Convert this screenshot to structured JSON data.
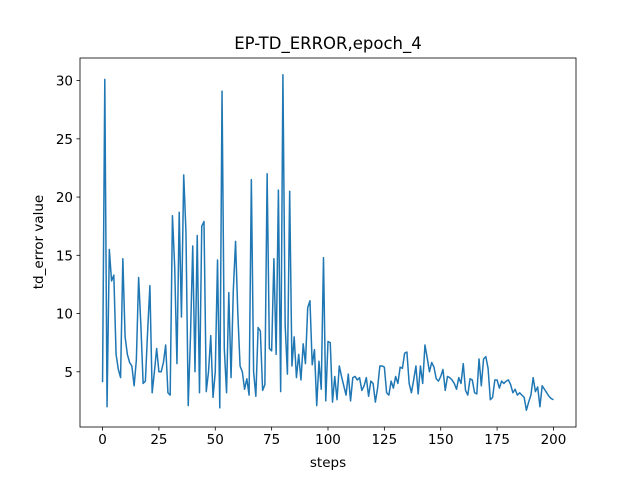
{
  "chart_data": {
    "type": "line",
    "title": "EP-TD_ERROR,epoch_4",
    "xlabel": "steps",
    "ylabel": "td_error value",
    "x": [
      0,
      1,
      2,
      3,
      4,
      5,
      6,
      7,
      8,
      9,
      10,
      11,
      12,
      13,
      14,
      15,
      16,
      17,
      18,
      19,
      20,
      21,
      22,
      23,
      24,
      25,
      26,
      27,
      28,
      29,
      30,
      31,
      32,
      33,
      34,
      35,
      36,
      37,
      38,
      39,
      40,
      41,
      42,
      43,
      44,
      45,
      46,
      47,
      48,
      49,
      50,
      51,
      52,
      53,
      54,
      55,
      56,
      57,
      58,
      59,
      60,
      61,
      62,
      63,
      64,
      65,
      66,
      67,
      68,
      69,
      70,
      71,
      72,
      73,
      74,
      75,
      76,
      77,
      78,
      79,
      80,
      81,
      82,
      83,
      84,
      85,
      86,
      87,
      88,
      89,
      90,
      91,
      92,
      93,
      94,
      95,
      96,
      97,
      98,
      99,
      100,
      101,
      102,
      103,
      104,
      105,
      106,
      107,
      108,
      109,
      110,
      111,
      112,
      113,
      114,
      115,
      116,
      117,
      118,
      119,
      120,
      121,
      122,
      123,
      124,
      125,
      126,
      127,
      128,
      129,
      130,
      131,
      132,
      133,
      134,
      135,
      136,
      137,
      138,
      139,
      140,
      141,
      142,
      143,
      144,
      145,
      146,
      147,
      148,
      149,
      150,
      151,
      152,
      153,
      154,
      155,
      156,
      157,
      158,
      159,
      160,
      161,
      162,
      163,
      164,
      165,
      166,
      167,
      168,
      169,
      170,
      171,
      172,
      173,
      174,
      175,
      176,
      177,
      178,
      179,
      180,
      181,
      182,
      183,
      184,
      185,
      186,
      187,
      188,
      189,
      190,
      191,
      192,
      193,
      194,
      195,
      196,
      197,
      198,
      199,
      200
    ],
    "series": [
      {
        "name": "td_error",
        "color": "#1f77b4",
        "values": [
          4.1,
          30.1,
          2.0,
          15.5,
          12.8,
          13.3,
          6.5,
          5.2,
          4.5,
          14.7,
          8.0,
          6.5,
          5.8,
          5.5,
          3.8,
          6.0,
          13.1,
          9.0,
          4.0,
          4.2,
          8.5,
          12.4,
          3.2,
          5.0,
          7.0,
          5.0,
          5.0,
          5.8,
          7.3,
          3.2,
          3.0,
          18.4,
          14.0,
          5.7,
          18.7,
          9.7,
          21.9,
          17.0,
          2.1,
          8.0,
          15.8,
          5.0,
          16.7,
          3.2,
          17.5,
          17.9,
          3.3,
          5.0,
          8.1,
          2.8,
          5.0,
          14.6,
          1.9,
          29.1,
          7.0,
          3.2,
          11.8,
          4.5,
          12.0,
          16.2,
          10.0,
          5.5,
          5.0,
          3.5,
          4.4,
          3.0,
          21.5,
          5.0,
          2.9,
          8.8,
          8.5,
          3.4,
          3.9,
          22.0,
          7.0,
          6.8,
          14.7,
          6.5,
          20.6,
          3.3,
          30.5,
          9.0,
          4.8,
          20.5,
          5.5,
          8.0,
          4.5,
          6.5,
          4.3,
          7.4,
          5.7,
          10.5,
          11.1,
          5.6,
          6.9,
          2.1,
          5.9,
          3.5,
          14.8,
          2.5,
          7.6,
          7.5,
          2.4,
          4.6,
          2.6,
          5.5,
          4.6,
          3.8,
          3.0,
          4.8,
          2.5,
          4.5,
          4.6,
          4.3,
          4.5,
          3.4,
          3.8,
          4.5,
          2.9,
          4.2,
          4.0,
          2.4,
          3.6,
          5.5,
          5.5,
          5.4,
          3.2,
          3.0,
          4.2,
          3.6,
          4.6,
          4.0,
          5.4,
          5.3,
          6.6,
          6.7,
          4.0,
          3.2,
          4.3,
          5.5,
          3.1,
          5.5,
          4.0,
          7.3,
          6.2,
          5.0,
          5.8,
          5.4,
          4.4,
          4.2,
          4.6,
          5.2,
          3.4,
          4.6,
          4.5,
          4.3,
          4.0,
          3.5,
          4.5,
          4.0,
          5.7,
          3.4,
          3.0,
          4.4,
          4.3,
          3.2,
          3.1,
          6.1,
          3.8,
          6.1,
          6.3,
          5.3,
          2.6,
          2.8,
          4.3,
          4.3,
          3.6,
          4.2,
          4.0,
          4.2,
          4.3,
          3.9,
          3.2,
          3.5,
          3.0,
          3.2,
          3.0,
          2.8,
          1.7,
          2.4,
          3.0,
          4.5,
          3.3,
          3.7,
          2.0,
          3.8,
          3.5,
          3.2,
          2.9,
          2.7,
          2.6
        ]
      }
    ],
    "xlim": [
      -10,
      210
    ],
    "ylim": [
      0.26,
      31.94
    ],
    "xticks": [
      0,
      25,
      50,
      75,
      100,
      125,
      150,
      175,
      200
    ],
    "yticks": [
      5,
      10,
      15,
      20,
      25,
      30
    ]
  }
}
